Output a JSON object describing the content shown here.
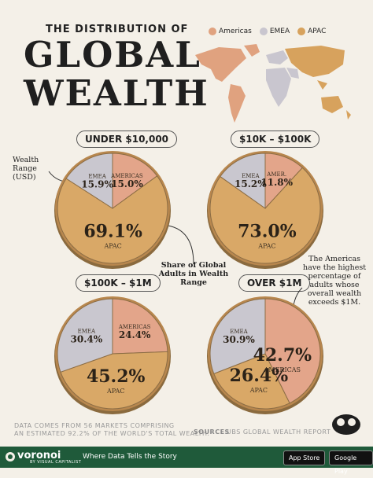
{
  "title": {
    "line0": "THE DISTRIBUTION OF",
    "line1": "GLOBAL",
    "line2": "WEALTH"
  },
  "legend": [
    {
      "name": "Americas",
      "color": "#e0a27f"
    },
    {
      "name": "EMEA",
      "color": "#c9c6cf"
    },
    {
      "name": "APAC",
      "color": "#d7a25d"
    }
  ],
  "annotations": {
    "wealth_range": "Wealth Range (USD)",
    "share": "Share of Global Adults in Wealth Range",
    "americas_note": "The Americas have the highest percentage of adults whose overall wealth exceeds $1M."
  },
  "chart_data": [
    {
      "type": "pie",
      "title": "UNDER $10,000",
      "slices": [
        {
          "name": "AMERICAS",
          "label": "AMERICAS",
          "value": 15.0,
          "text": "15.0%"
        },
        {
          "name": "APAC",
          "label": "APAC",
          "value": 69.1,
          "text": "69.1%"
        },
        {
          "name": "EMEA",
          "label": "EMEA",
          "value": 15.9,
          "text": "15.9%"
        }
      ]
    },
    {
      "type": "pie",
      "title": "$10K – $100K",
      "slices": [
        {
          "name": "AMERICAS",
          "label": "AMER.",
          "value": 11.8,
          "text": "11.8%"
        },
        {
          "name": "APAC",
          "label": "APAC",
          "value": 73.0,
          "text": "73.0%"
        },
        {
          "name": "EMEA",
          "label": "EMEA",
          "value": 15.2,
          "text": "15.2%"
        }
      ]
    },
    {
      "type": "pie",
      "title": "$100K – $1M",
      "slices": [
        {
          "name": "AMERICAS",
          "label": "AMERICAS",
          "value": 24.4,
          "text": "24.4%"
        },
        {
          "name": "APAC",
          "label": "APAC",
          "value": 45.2,
          "text": "45.2%"
        },
        {
          "name": "EMEA",
          "label": "EMEA",
          "value": 30.4,
          "text": "30.4%"
        }
      ]
    },
    {
      "type": "pie",
      "title": "OVER $1M",
      "slices": [
        {
          "name": "AMERICAS",
          "label": "AMERICAS",
          "value": 42.7,
          "text": "42.7%"
        },
        {
          "name": "APAC",
          "label": "APAC",
          "value": 26.4,
          "text": "26.4%"
        },
        {
          "name": "EMEA",
          "label": "EMEA",
          "value": 30.9,
          "text": "30.9%"
        }
      ]
    }
  ],
  "colors": {
    "AMERICAS": "#e3a58a",
    "APAC": "#d9a867",
    "EMEA": "#c9c7cf",
    "rim": "#b8874e"
  },
  "footer": {
    "data_note_1": "DATA COMES FROM 56 MARKETS COMPRISING",
    "data_note_2": "AN ESTIMATED 92.2% OF THE WORLD'S TOTAL WEALTH.",
    "sources_label": "SOURCES",
    "sources": "UBS GLOBAL WEALTH REPORT",
    "brand": "voronoi",
    "brand_sub": "BY VISUAL CAPITALIST",
    "tagline": "Where Data Tells the Story",
    "app_store": "App Store",
    "google_play": "Google Play"
  }
}
